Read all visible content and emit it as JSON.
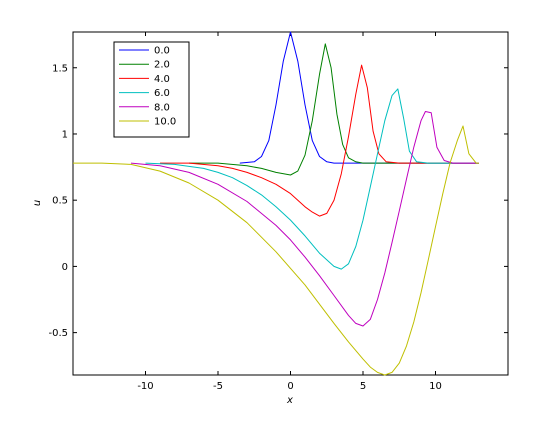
{
  "chart_data": {
    "type": "line",
    "xlabel": "x",
    "ylabel": "u",
    "xlim": [
      -15,
      15
    ],
    "ylim": [
      -0.82,
      1.77
    ],
    "xticks": [
      -10,
      -5,
      0,
      5,
      10
    ],
    "yticks": [
      -0.5,
      0,
      0.5,
      1,
      1.5
    ],
    "xtick_labels": [
      "-10",
      "-5",
      "0",
      "5",
      "10"
    ],
    "ytick_labels": [
      "-0.5",
      "0",
      "0.5",
      "1",
      "1.5"
    ],
    "grid": false,
    "legend_position": "top-left",
    "series": [
      {
        "name": "0.0",
        "color": "#0000ff",
        "x": [
          -3.5,
          -2.5,
          -2,
          -1.5,
          -1,
          -0.5,
          0,
          0.5,
          1,
          1.5,
          2,
          2.5,
          3,
          4,
          6,
          10,
          13
        ],
        "y": [
          0.78,
          0.79,
          0.83,
          0.95,
          1.22,
          1.55,
          1.77,
          1.55,
          1.22,
          0.95,
          0.83,
          0.79,
          0.78,
          0.78,
          0.78,
          0.78,
          0.78
        ]
      },
      {
        "name": "2.0",
        "color": "#008000",
        "x": [
          -7,
          -5,
          -3,
          -2,
          -1,
          0,
          0.5,
          1,
          1.5,
          2,
          2.4,
          2.8,
          3.2,
          3.6,
          4,
          4.5,
          5,
          6,
          13
        ],
        "y": [
          0.78,
          0.78,
          0.76,
          0.74,
          0.71,
          0.69,
          0.72,
          0.84,
          1.1,
          1.45,
          1.68,
          1.5,
          1.15,
          0.92,
          0.82,
          0.79,
          0.78,
          0.78,
          0.78
        ]
      },
      {
        "name": "4.0",
        "color": "#ff0000",
        "x": [
          -9,
          -7,
          -5,
          -4,
          -3,
          -2,
          -1,
          0,
          1,
          1.5,
          2,
          2.5,
          3,
          3.5,
          4,
          4.5,
          4.9,
          5.3,
          5.7,
          6.1,
          6.6,
          7.5,
          13
        ],
        "y": [
          0.78,
          0.78,
          0.76,
          0.74,
          0.71,
          0.67,
          0.62,
          0.55,
          0.45,
          0.41,
          0.38,
          0.4,
          0.5,
          0.7,
          0.98,
          1.3,
          1.52,
          1.35,
          1.02,
          0.85,
          0.79,
          0.78,
          0.78
        ]
      },
      {
        "name": "6.0",
        "color": "#00bfbf",
        "x": [
          -10,
          -8,
          -6,
          -5,
          -4,
          -3,
          -2,
          -1,
          0,
          1,
          2,
          3,
          3.5,
          4,
          4.5,
          5,
          5.5,
          6,
          6.5,
          7,
          7.4,
          7.8,
          8.2,
          8.7,
          9.5,
          13
        ],
        "y": [
          0.78,
          0.77,
          0.74,
          0.71,
          0.67,
          0.61,
          0.54,
          0.45,
          0.35,
          0.23,
          0.1,
          0.0,
          -0.02,
          0.02,
          0.15,
          0.35,
          0.6,
          0.85,
          1.1,
          1.29,
          1.34,
          1.12,
          0.87,
          0.79,
          0.78,
          0.78
        ]
      },
      {
        "name": "8.0",
        "color": "#bf00bf",
        "x": [
          -11,
          -9,
          -7,
          -5,
          -3,
          -1,
          0,
          1,
          2,
          3,
          4,
          4.5,
          5,
          5.5,
          6,
          6.5,
          7,
          7.5,
          8,
          8.5,
          9,
          9.3,
          9.7,
          10.1,
          10.6,
          11.2,
          13
        ],
        "y": [
          0.78,
          0.76,
          0.71,
          0.62,
          0.49,
          0.31,
          0.2,
          0.07,
          -0.07,
          -0.22,
          -0.37,
          -0.43,
          -0.45,
          -0.4,
          -0.25,
          -0.05,
          0.18,
          0.42,
          0.66,
          0.9,
          1.1,
          1.17,
          1.16,
          0.9,
          0.8,
          0.78,
          0.78
        ]
      },
      {
        "name": "10.0",
        "color": "#bfbf00",
        "x": [
          -15,
          -13,
          -11,
          -9,
          -7,
          -5,
          -3,
          -1,
          1,
          3,
          4,
          5,
          5.5,
          6,
          6.5,
          7,
          7.5,
          8,
          8.5,
          9,
          9.5,
          10,
          10.5,
          11,
          11.5,
          11.9,
          12.3,
          12.8,
          13
        ],
        "y": [
          0.78,
          0.78,
          0.77,
          0.72,
          0.63,
          0.5,
          0.33,
          0.11,
          -0.14,
          -0.43,
          -0.57,
          -0.7,
          -0.76,
          -0.8,
          -0.82,
          -0.8,
          -0.73,
          -0.6,
          -0.42,
          -0.2,
          0.05,
          0.3,
          0.55,
          0.78,
          0.95,
          1.06,
          0.85,
          0.78,
          0.78
        ]
      }
    ]
  }
}
